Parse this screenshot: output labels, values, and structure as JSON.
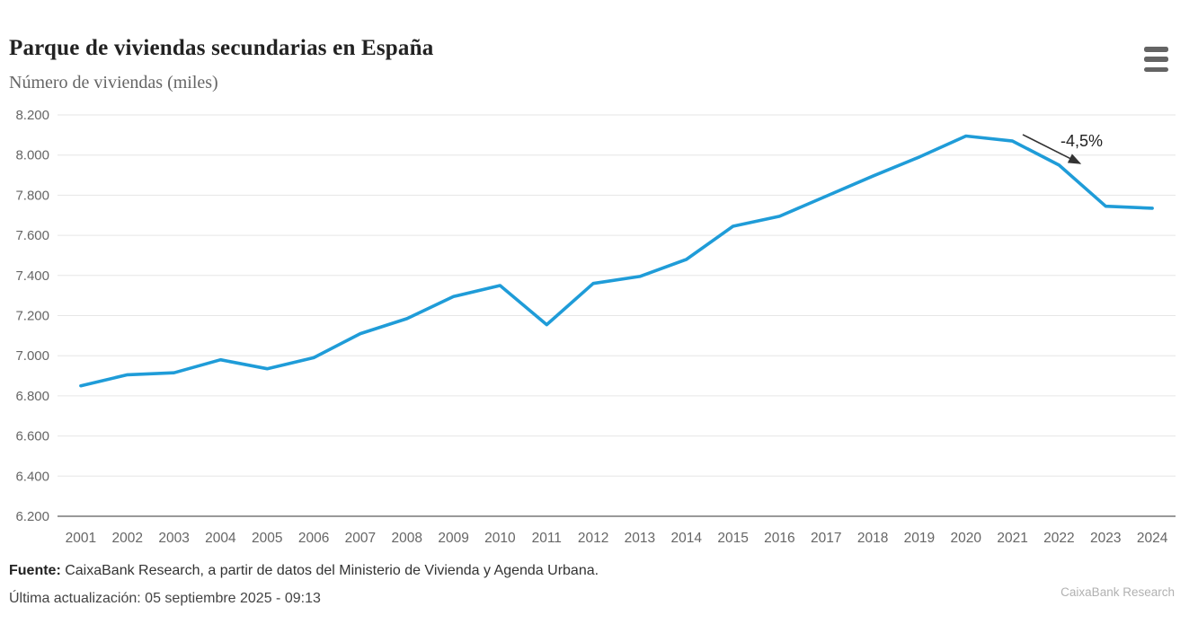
{
  "header": {
    "title": "Parque de viviendas secundarias en España",
    "subtitle": "Número de viviendas (miles)",
    "menu_icon": "hamburger-menu-icon"
  },
  "chart_data": {
    "type": "line",
    "title": "Parque de viviendas secundarias en España",
    "subtitle": "Número de viviendas (miles)",
    "categories": [
      "2001",
      "2002",
      "2003",
      "2004",
      "2005",
      "2006",
      "2007",
      "2008",
      "2009",
      "2010",
      "2011",
      "2012",
      "2013",
      "2014",
      "2015",
      "2016",
      "2017",
      "2018",
      "2019",
      "2020",
      "2021",
      "2022",
      "2023",
      "2024"
    ],
    "series": [
      {
        "name": "Número de viviendas (miles)",
        "color": "#1f9cd8",
        "values": [
          6850,
          6905,
          6915,
          6980,
          6935,
          6990,
          7110,
          7185,
          7295,
          7350,
          7155,
          7360,
          7395,
          7480,
          7645,
          7695,
          7795,
          7895,
          7990,
          8095,
          8070,
          7950,
          7745,
          7735
        ]
      }
    ],
    "ylim": [
      6200,
      8200
    ],
    "ytick_step": 200,
    "ytick_labels": [
      "6.200",
      "6.400",
      "6.600",
      "6.800",
      "7.000",
      "7.200",
      "7.400",
      "7.600",
      "7.800",
      "8.000",
      "8.200"
    ],
    "xlabel": "",
    "ylabel": "",
    "grid": true,
    "legend": false,
    "annotation": {
      "text": "-4,5%",
      "line": {
        "x1": 2021.22,
        "y1": 8102,
        "x2": 2022.45,
        "y2": 7958
      },
      "label": {
        "x": 2022.03,
        "y": 8070
      }
    },
    "colors": {
      "gridline": "#e6e6e6",
      "axis_line": "#333333",
      "tick_text": "#666666",
      "annotation": "#333333"
    }
  },
  "footer": {
    "source_label": "Fuente:",
    "source_text": " CaixaBank Research, a partir de datos del Ministerio de Vivienda y Agenda Urbana.",
    "last_update": "Última actualización: 05 septiembre 2025 - 09:13",
    "watermark": "CaixaBank Research"
  }
}
